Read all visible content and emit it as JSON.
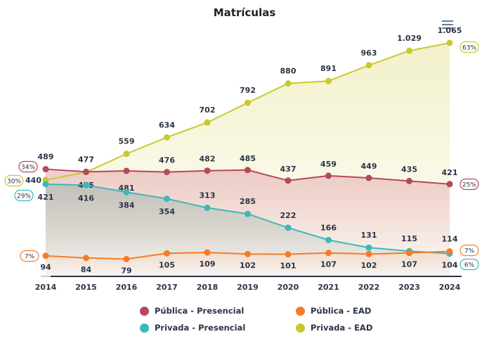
{
  "chart_data": {
    "type": "line",
    "title": "Matrículas",
    "x": [
      "2014",
      "2015",
      "2016",
      "2017",
      "2018",
      "2019",
      "2020",
      "2021",
      "2022",
      "2023",
      "2024"
    ],
    "ylim": [
      0,
      1065
    ],
    "grid": false,
    "legend": "bottom",
    "series": [
      {
        "name": "Pública - Presencial",
        "color": "#b5485a",
        "values": [
          489,
          477,
          481,
          476,
          482,
          485,
          437,
          459,
          449,
          435,
          421
        ],
        "start_share": "34%",
        "end_share": "25%"
      },
      {
        "name": "Privada - Presencial",
        "color": "#3bb9b9",
        "values": [
          421,
          416,
          384,
          354,
          313,
          285,
          222,
          166,
          131,
          115,
          104
        ],
        "start_share": "29%",
        "end_share": "6%"
      },
      {
        "name": "Pública - EAD",
        "color": "#f57c26",
        "values": [
          94,
          84,
          79,
          105,
          109,
          102,
          101,
          107,
          102,
          107,
          114
        ],
        "start_share": "7%",
        "end_share": "7%"
      },
      {
        "name": "Privada - EAD",
        "color": "#cbc82c",
        "values": [
          440,
          475,
          559,
          634,
          702,
          792,
          880,
          891,
          963,
          1029,
          1065
        ],
        "start_share": "30%",
        "end_share": "63%"
      }
    ]
  },
  "menu_icon": "hamburger-menu-icon"
}
